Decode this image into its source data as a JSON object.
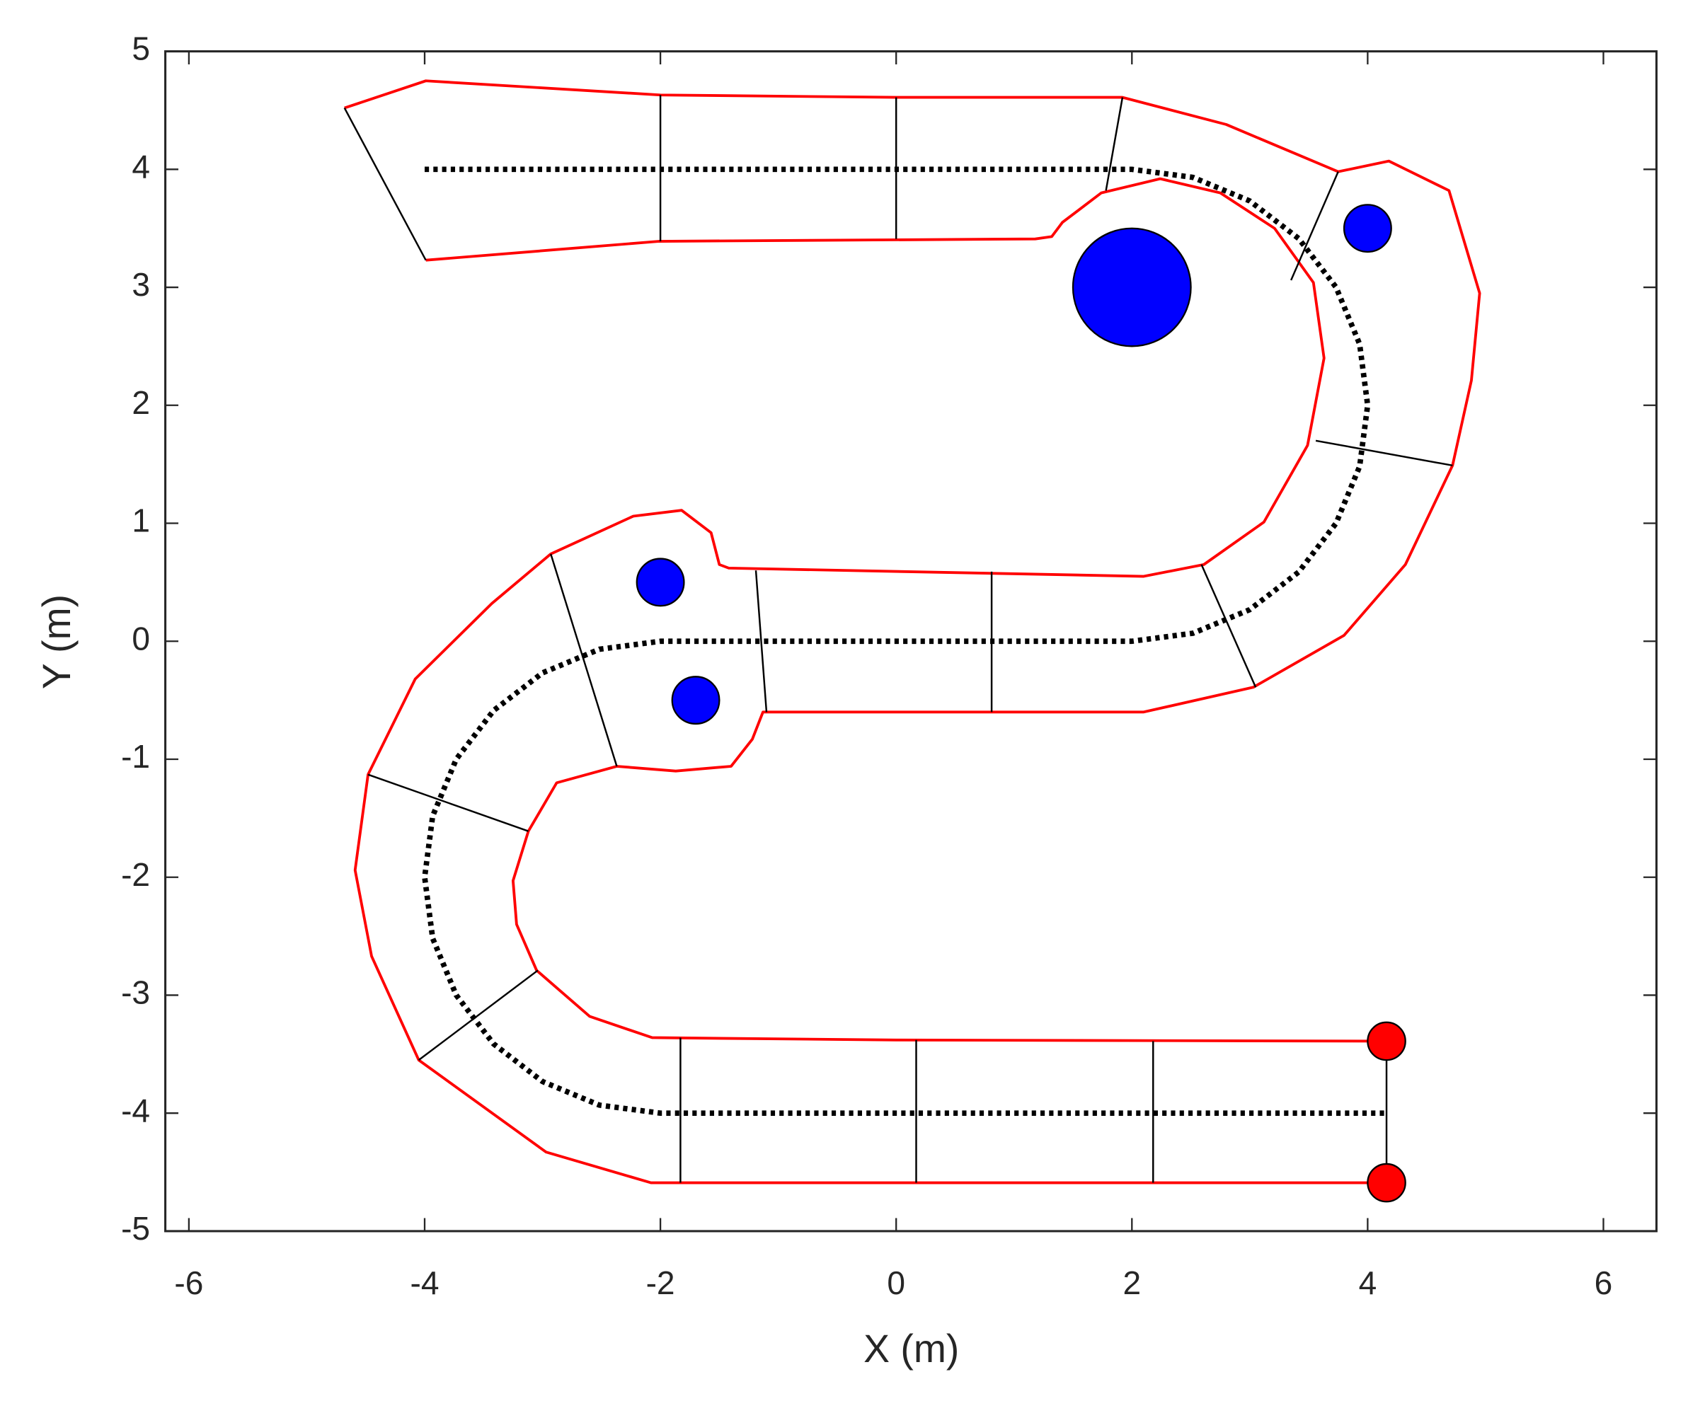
{
  "chart_data": {
    "type": "line",
    "xlabel": "X (m)",
    "ylabel": "Y (m)",
    "xlim": [
      -6.2,
      6.45
    ],
    "ylim": [
      -5,
      5
    ],
    "xticks": [
      -6,
      -4,
      -2,
      0,
      2,
      4,
      6
    ],
    "yticks": [
      -5,
      -4,
      -3,
      -2,
      -1,
      0,
      1,
      2,
      3,
      4,
      5
    ],
    "grid": false,
    "series": [
      {
        "color": "#ff0000",
        "x": [
          -4.68,
          -3.99,
          -2.0,
          0.0,
          1.92,
          2.8,
          3.75,
          4.18,
          4.69,
          4.95,
          4.88,
          4.72,
          4.32,
          3.8,
          3.03,
          2.1,
          -1.13,
          -1.22,
          -1.4,
          -1.87,
          -2.37,
          -2.88,
          -3.12,
          -3.25,
          -3.22,
          -3.05,
          -2.6,
          -2.07,
          0.0,
          4.18
        ],
        "values": [
          4.52,
          4.75,
          4.63,
          4.61,
          4.61,
          4.38,
          3.98,
          4.07,
          3.82,
          2.95,
          2.21,
          1.49,
          0.65,
          0.05,
          -0.39,
          -0.6,
          -0.6,
          -0.83,
          -1.06,
          -1.1,
          -1.06,
          -1.2,
          -1.61,
          -2.03,
          -2.4,
          -2.79,
          -3.18,
          -3.36,
          -3.38,
          -3.39
        ]
      },
      {
        "color": "#ff0000",
        "x": [
          4.18,
          -2.08,
          -2.97,
          -4.05,
          -4.45,
          -4.59,
          -4.48,
          -4.08,
          -3.43,
          -2.93,
          -2.23,
          -1.82,
          -1.57,
          -1.5,
          -1.42,
          2.1,
          2.61,
          3.12,
          3.49,
          3.63,
          3.54,
          3.21,
          2.75,
          2.24,
          1.74,
          1.41,
          1.32,
          1.18,
          -2.01,
          -3.99
        ],
        "values": [
          -4.59,
          -4.59,
          -4.33,
          -3.55,
          -2.67,
          -1.94,
          -1.13,
          -0.32,
          0.32,
          0.74,
          1.06,
          1.11,
          0.92,
          0.65,
          0.62,
          0.55,
          0.65,
          1.01,
          1.66,
          2.4,
          3.04,
          3.5,
          3.8,
          3.92,
          3.8,
          3.55,
          3.43,
          3.41,
          3.39,
          3.23
        ]
      },
      {
        "color": "#000000",
        "style": "dotted",
        "x": [
          -4,
          2,
          2.518,
          3,
          3.414,
          3.732,
          3.932,
          4,
          3.932,
          3.732,
          3.414,
          3,
          2.518,
          2,
          -2,
          -2.518,
          -3,
          -3.414,
          -3.732,
          -3.932,
          -4,
          -3.932,
          -3.732,
          -3.414,
          -3,
          -2.518,
          -2,
          4.15
        ],
        "values": [
          4,
          4,
          3.932,
          3.732,
          3.414,
          3,
          2.518,
          2,
          1.482,
          1,
          0.586,
          0.268,
          0.068,
          0,
          0,
          -0.068,
          -0.268,
          -0.586,
          -1,
          -1.482,
          -2,
          -2.518,
          -3,
          -3.414,
          -3.732,
          -3.932,
          -4,
          -4
        ]
      },
      {
        "color": "#000000",
        "x": [
          -4.68,
          -3.99
        ],
        "values": [
          4.52,
          3.23
        ]
      },
      {
        "color": "#000000",
        "x": [
          -2.0,
          -2.0
        ],
        "values": [
          4.63,
          3.39
        ]
      },
      {
        "color": "#000000",
        "x": [
          0.0,
          0.0
        ],
        "values": [
          4.61,
          3.41
        ]
      },
      {
        "color": "#000000",
        "x": [
          1.92,
          1.78
        ],
        "values": [
          4.61,
          3.82
        ]
      },
      {
        "color": "#000000",
        "x": [
          3.75,
          3.35
        ],
        "values": [
          3.98,
          3.06
        ]
      },
      {
        "color": "#000000",
        "x": [
          3.56,
          4.72
        ],
        "values": [
          1.7,
          1.49
        ]
      },
      {
        "color": "#000000",
        "x": [
          2.59,
          3.05
        ],
        "values": [
          0.65,
          -0.39
        ]
      },
      {
        "color": "#000000",
        "x": [
          0.81,
          0.81
        ],
        "values": [
          0.59,
          -0.6
        ]
      },
      {
        "color": "#000000",
        "x": [
          -1.19,
          -1.1
        ],
        "values": [
          0.6,
          -0.6
        ]
      },
      {
        "color": "#000000",
        "x": [
          -2.93,
          -2.37
        ],
        "values": [
          0.74,
          -1.06
        ]
      },
      {
        "color": "#000000",
        "x": [
          -4.48,
          -3.12
        ],
        "values": [
          -1.13,
          -1.61
        ]
      },
      {
        "color": "#000000",
        "x": [
          -4.05,
          -3.04
        ],
        "values": [
          -3.55,
          -2.79
        ]
      },
      {
        "color": "#000000",
        "x": [
          -1.83,
          -1.83
        ],
        "values": [
          -3.36,
          -4.59
        ]
      },
      {
        "color": "#000000",
        "x": [
          0.17,
          0.17
        ],
        "values": [
          -3.38,
          -4.59
        ]
      },
      {
        "color": "#000000",
        "x": [
          2.18,
          2.18
        ],
        "values": [
          -3.39,
          -4.59
        ]
      },
      {
        "color": "#000000",
        "x": [
          4.16,
          4.16
        ],
        "values": [
          -3.39,
          -4.59
        ]
      },
      {
        "color": "#0000ff",
        "marker": "circle",
        "x": [
          2,
          4,
          -2,
          -1.7
        ],
        "values": [
          3,
          3.5,
          0.5,
          -0.5
        ],
        "radius": [
          0.5,
          0.2,
          0.2,
          0.2
        ]
      },
      {
        "color": "#ff0000",
        "marker": "circle",
        "x": [
          4.16,
          4.16
        ],
        "values": [
          -3.39,
          -4.59
        ],
        "radius": [
          0.16,
          0.16
        ]
      }
    ]
  }
}
